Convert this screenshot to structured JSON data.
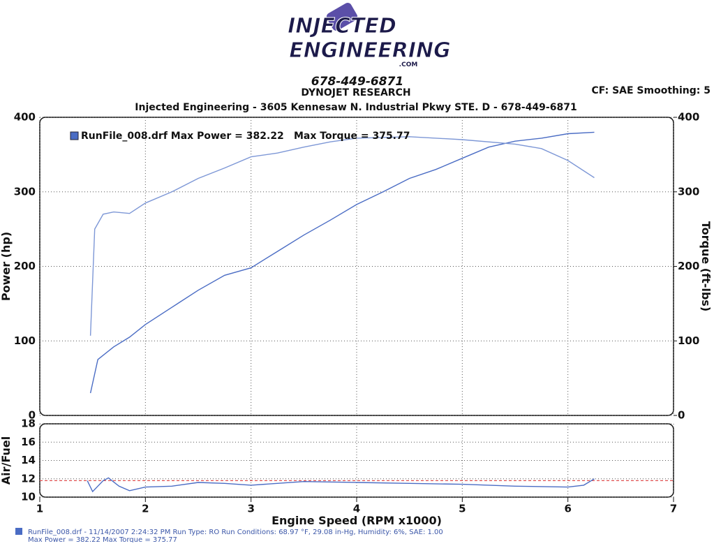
{
  "header": {
    "logo_top": "INJECTED",
    "logo_bottom": "ENGINEERING",
    "logo_suffix": ".COM",
    "phone": "678-449-6871",
    "company": "DYNOJET RESEARCH",
    "settings": "CF: SAE  Smoothing: 5",
    "address": "Injected Engineering - 3605 Kennesaw N. Industrial Pkwy STE. D - 678-449-6871"
  },
  "chart_data": [
    {
      "type": "line",
      "legend": "RunFile_008.drf Max Power = 382.22",
      "legend_extra": "Max Torque = 375.77",
      "ylabel": "Power (hp)",
      "y2label": "Torque (ft-lbs)",
      "xlim": [
        1,
        7
      ],
      "xticks": [
        1,
        2,
        3,
        4,
        5,
        6,
        7
      ],
      "ylim": [
        0,
        400
      ],
      "yticks": [
        0,
        100,
        200,
        300,
        400
      ],
      "y2lim": [
        0,
        400
      ],
      "y2ticks": [
        0,
        100,
        200,
        300,
        400
      ],
      "grid": true,
      "series": [
        {
          "color": "#4a6cc4",
          "x": [
            1.48,
            1.55,
            1.7,
            1.85,
            2.0,
            2.25,
            2.5,
            2.75,
            3.0,
            3.25,
            3.5,
            3.75,
            4.0,
            4.25,
            4.5,
            4.75,
            5.0,
            5.25,
            5.5,
            5.75,
            6.0,
            6.25
          ],
          "values": [
            30,
            75,
            92,
            105,
            122,
            145,
            168,
            188,
            198,
            220,
            242,
            262,
            283,
            300,
            318,
            330,
            345,
            360,
            368,
            372,
            378,
            380
          ]
        },
        {
          "color": "#7d97d6",
          "axis": "y2",
          "x": [
            1.48,
            1.52,
            1.6,
            1.7,
            1.85,
            2.0,
            2.25,
            2.5,
            2.75,
            3.0,
            3.25,
            3.5,
            3.75,
            4.0,
            4.5,
            5.0,
            5.5,
            5.75,
            6.0,
            6.25
          ],
          "values": [
            107,
            250,
            270,
            273,
            271,
            285,
            300,
            318,
            332,
            347,
            352,
            360,
            367,
            372,
            374,
            370,
            364,
            358,
            342,
            319
          ]
        }
      ]
    },
    {
      "type": "line",
      "ylabel": "Air/Fuel",
      "xlabel": "Engine Speed (RPM x1000)",
      "xlim": [
        1,
        7
      ],
      "xticks": [
        1,
        2,
        3,
        4,
        5,
        6,
        7
      ],
      "ylim": [
        10,
        18
      ],
      "yticks": [
        10,
        12,
        14,
        16,
        18
      ],
      "grid": true,
      "reference": 11.8,
      "reference_color": "#e05050",
      "series": [
        {
          "color": "#4a6cc4",
          "x": [
            1.45,
            1.5,
            1.6,
            1.65,
            1.75,
            1.85,
            2.0,
            2.25,
            2.5,
            2.75,
            3.0,
            3.5,
            4.0,
            4.5,
            5.0,
            5.5,
            6.0,
            6.15,
            6.25
          ],
          "values": [
            11.8,
            10.6,
            11.8,
            12.1,
            11.2,
            10.7,
            11.1,
            11.2,
            11.6,
            11.5,
            11.3,
            11.7,
            11.6,
            11.5,
            11.4,
            11.2,
            11.1,
            11.3,
            12.0
          ]
        }
      ]
    }
  ],
  "footer": {
    "line1": "RunFile_008.drf - 11/14/2007 2:24:32 PM  Run Type: RO  Run Conditions: 68.97 °F, 29.08 in-Hg,  Humidity:  6%, SAE: 1.00",
    "line2": "Max Power = 382.22  Max Torque = 375.77"
  }
}
